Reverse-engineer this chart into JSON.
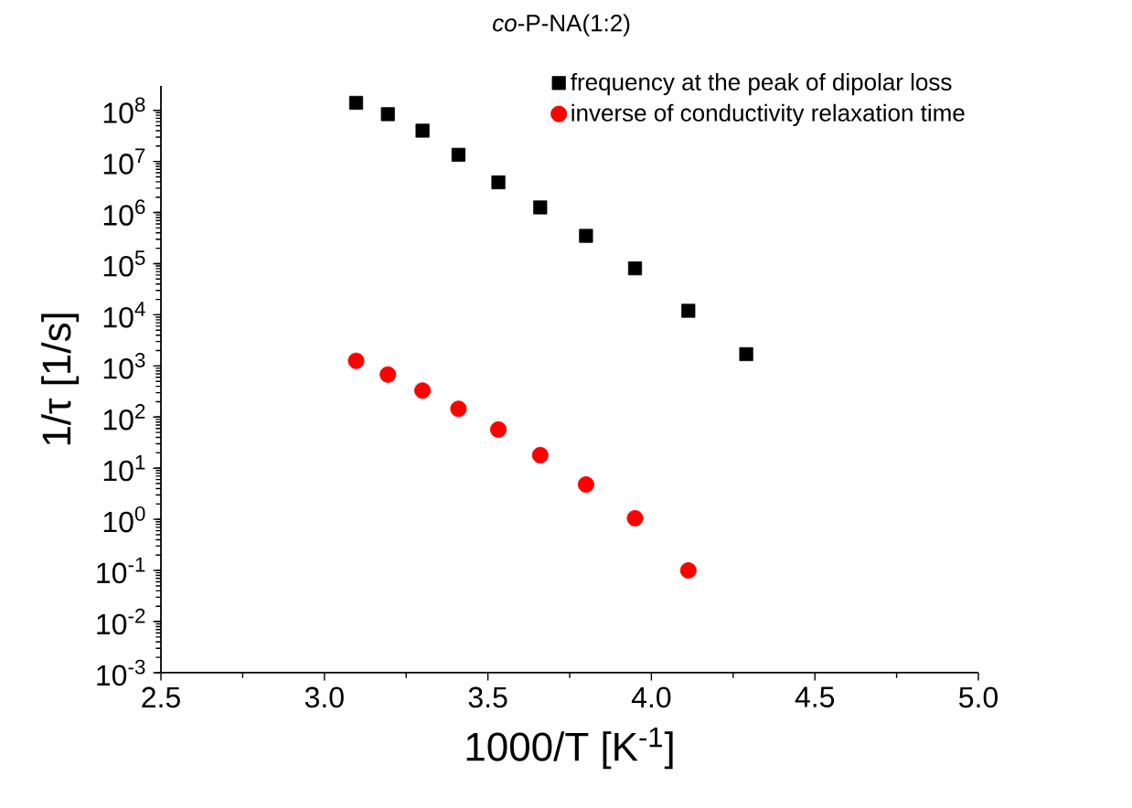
{
  "chart_data": {
    "type": "scatter",
    "title": "*co*-P-NA(1:2)",
    "xlabel": "1000/T [K$^{-1}$]",
    "ylabel": "1/τ [1/s]",
    "x": [
      3.097,
      3.194,
      3.3,
      3.41,
      3.532,
      3.66,
      3.8,
      3.95,
      4.113,
      4.29
    ],
    "series": [
      {
        "name": "frequency at the peak of dipolar loss",
        "color": "#000000",
        "marker": "square",
        "values": [
          140000000.0,
          84000000.0,
          40000000.0,
          13500000.0,
          3900000.0,
          1260000.0,
          350000.0,
          81000.0,
          12000.0,
          1700.0
        ]
      },
      {
        "name": "inverse of conductivity relaxation time",
        "color": "#ff0000",
        "marker": "circle",
        "values": [
          1260,
          680,
          330,
          145,
          57,
          18,
          4.8,
          1.05,
          0.1,
          null
        ]
      }
    ],
    "log": "y",
    "legend": "top right",
    "grid": false,
    "xlim": [
      2.5,
      5.0
    ],
    "xticks": [
      2.5,
      {
        "value": 3.0,
        "label": "3.0"
      },
      3.5,
      {
        "value": 4.0,
        "label": "4.0"
      },
      4.5,
      {
        "value": 5.0,
        "label": "5.0"
      }
    ],
    "ylim": [
      0.001,
      300000000.0
    ],
    "yticks": [
      {
        "value": 0.001,
        "label": "10$^{-3}$"
      },
      {
        "value": 0.01,
        "label": "10$^{-2}$"
      },
      {
        "value": 0.1,
        "label": "10$^{-1}$"
      },
      {
        "value": 1,
        "label": "10$^{0}$"
      },
      {
        "value": 10,
        "label": "10$^{1}$"
      },
      {
        "value": 100,
        "label": "10$^{2}$"
      },
      {
        "value": 1000,
        "label": "10$^{3}$"
      },
      {
        "value": 10000,
        "label": "10$^{4}$"
      },
      {
        "value": 100000,
        "label": "10$^{5}$"
      },
      {
        "value": 1000000,
        "label": "10$^{6}$"
      },
      {
        "value": 10000000,
        "label": "10$^{7}$"
      },
      {
        "value": 100000000,
        "label": "10$^{8}$"
      }
    ]
  }
}
